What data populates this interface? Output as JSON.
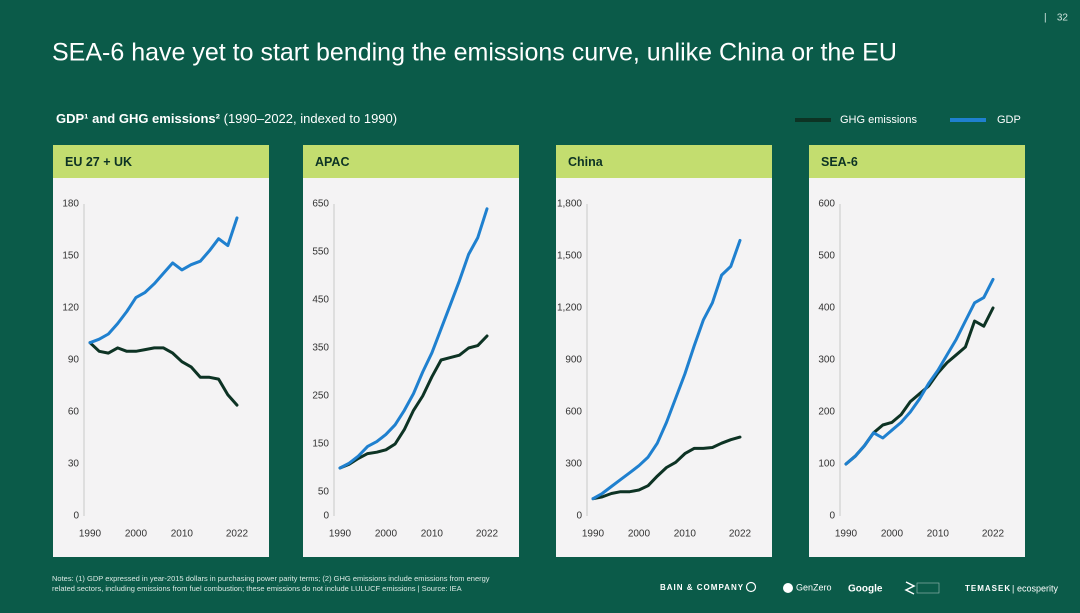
{
  "page_number": "32",
  "title": "SEA-6 have yet to start bending the emissions curve, unlike China or the EU",
  "subtitle": "GDP¹ and GHG emissions²",
  "subtitle_note": "(1990–2022, indexed to 1990)",
  "notes": [
    "Notes: (1) GDP expressed in year-2015 dollars in purchasing power parity terms; (2) GHG emissions include emissions from energy",
    "related sectors, including emissions from fuel combustion; these emissions do not include LULUCF emissions | Source: IEA"
  ],
  "logos": [
    "BAIN & COMPANY",
    "GenZero",
    "Google",
    "TEMASEK",
    "ecosperity"
  ],
  "chart_data": [
    {
      "type": "line",
      "title": "EU 27 + UK",
      "x": [
        1990,
        1992,
        1994,
        1996,
        1998,
        2000,
        2002,
        2004,
        2006,
        2008,
        2010,
        2012,
        2014,
        2016,
        2018,
        2020,
        2022
      ],
      "xlim": [
        1990,
        2022
      ],
      "xticks": [
        1990,
        2000,
        2010,
        2022
      ],
      "ylim": [
        0,
        180
      ],
      "yticks": [
        0,
        30,
        60,
        90,
        120,
        150,
        180
      ],
      "series": [
        {
          "name": "GHG emissions",
          "color": "#0d3324",
          "values": [
            100,
            95,
            94,
            97,
            95,
            95,
            96,
            97,
            97,
            94,
            89,
            86,
            80,
            80,
            79,
            70,
            64
          ]
        },
        {
          "name": "GDP",
          "color": "#1f80cf",
          "values": [
            100,
            102,
            105,
            111,
            118,
            126,
            129,
            134,
            140,
            146,
            142,
            145,
            147,
            153,
            160,
            156,
            172
          ]
        }
      ]
    },
    {
      "type": "line",
      "title": "APAC",
      "x": [
        1990,
        1992,
        1994,
        1996,
        1998,
        2000,
        2002,
        2004,
        2006,
        2008,
        2010,
        2012,
        2014,
        2016,
        2018,
        2020,
        2022
      ],
      "xlim": [
        1990,
        2022
      ],
      "xticks": [
        1990,
        2000,
        2010,
        2022
      ],
      "ylim": [
        0,
        650
      ],
      "yticks": [
        0,
        50,
        150,
        250,
        350,
        450,
        550,
        650
      ],
      "series": [
        {
          "name": "GHG emissions",
          "color": "#0d3324",
          "values": [
            100,
            108,
            120,
            130,
            133,
            138,
            150,
            180,
            220,
            250,
            290,
            325,
            330,
            335,
            350,
            355,
            375
          ]
        },
        {
          "name": "GDP",
          "color": "#1f80cf",
          "values": [
            100,
            110,
            125,
            145,
            155,
            170,
            190,
            220,
            255,
            300,
            340,
            390,
            440,
            490,
            545,
            580,
            640
          ]
        }
      ]
    },
    {
      "type": "line",
      "title": "China",
      "x": [
        1990,
        1992,
        1994,
        1996,
        1998,
        2000,
        2002,
        2004,
        2006,
        2008,
        2010,
        2012,
        2014,
        2016,
        2018,
        2020,
        2022
      ],
      "xlim": [
        1990,
        2022
      ],
      "xticks": [
        1990,
        2000,
        2010,
        2022
      ],
      "ylim": [
        0,
        1800
      ],
      "yticks": [
        0,
        300,
        600,
        900,
        {
          "value": 1200,
          "label": "1,200"
        },
        {
          "value": 1500,
          "label": "1,500"
        },
        {
          "value": 1800,
          "label": "1,800"
        }
      ],
      "series": [
        {
          "name": "GHG emissions",
          "color": "#0d3324",
          "values": [
            100,
            110,
            130,
            140,
            140,
            150,
            175,
            230,
            280,
            310,
            360,
            390,
            390,
            395,
            420,
            440,
            455
          ]
        },
        {
          "name": "GDP",
          "color": "#1f80cf",
          "values": [
            100,
            130,
            170,
            210,
            250,
            290,
            340,
            420,
            540,
            680,
            820,
            980,
            1130,
            1230,
            1390,
            1440,
            1590
          ]
        }
      ]
    },
    {
      "type": "line",
      "title": "SEA-6",
      "x": [
        1990,
        1992,
        1994,
        1996,
        1998,
        2000,
        2002,
        2004,
        2006,
        2008,
        2010,
        2012,
        2014,
        2016,
        2018,
        2020,
        2022
      ],
      "xlim": [
        1990,
        2022
      ],
      "xticks": [
        1990,
        2000,
        2010,
        2022
      ],
      "ylim": [
        0,
        600
      ],
      "yticks": [
        0,
        100,
        200,
        300,
        400,
        500,
        600
      ],
      "series": [
        {
          "name": "GHG emissions",
          "color": "#0d3324",
          "values": [
            100,
            115,
            135,
            160,
            175,
            180,
            195,
            220,
            235,
            250,
            275,
            295,
            310,
            325,
            375,
            365,
            400
          ]
        },
        {
          "name": "GDP",
          "color": "#1f80cf",
          "values": [
            100,
            115,
            135,
            160,
            150,
            165,
            180,
            200,
            225,
            255,
            280,
            310,
            340,
            375,
            410,
            420,
            455
          ]
        }
      ]
    }
  ]
}
